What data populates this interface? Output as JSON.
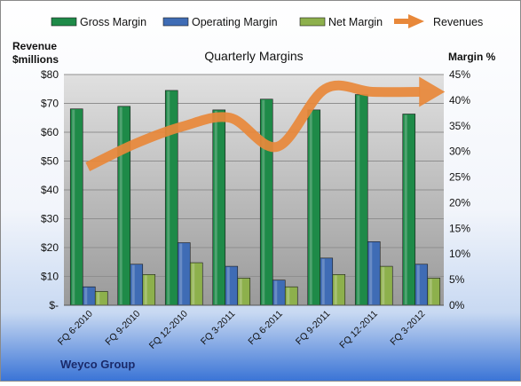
{
  "chart_data": {
    "type": "bar",
    "title": "Quarterly Margins",
    "left_axis_label": [
      "Revenue",
      "$millions"
    ],
    "right_axis_label": "Margin %",
    "footer_label": "Weyco Group",
    "categories": [
      "FQ 6-2010",
      "FQ 9-2010",
      "FQ 12-2010",
      "FQ 3-2011",
      "FQ 6-2011",
      "FQ 9-2011",
      "FQ 12-2011",
      "FQ 3-2012"
    ],
    "left_ticks": [
      "$-",
      "$10",
      "$20",
      "$30",
      "$40",
      "$50",
      "$60",
      "$70",
      "$80"
    ],
    "right_ticks": [
      "0%",
      "5%",
      "10%",
      "15%",
      "20%",
      "25%",
      "30%",
      "35%",
      "40%",
      "45%"
    ],
    "left_ylim": [
      0,
      80
    ],
    "right_ylim": [
      0,
      45
    ],
    "grid": true,
    "legend_position": "top",
    "bar_series": [
      {
        "name": "Gross Margin",
        "color": "#1e8a48",
        "values": [
          38.3,
          38.8,
          41.9,
          38.1,
          40.2,
          38.1,
          41.1,
          37.3
        ]
      },
      {
        "name": "Operating Margin",
        "color": "#3f6cb5",
        "values": [
          3.6,
          8.0,
          12.2,
          7.6,
          4.9,
          9.2,
          12.4,
          8.0
        ]
      },
      {
        "name": "Net Margin",
        "color": "#8db04c",
        "values": [
          2.7,
          6.0,
          8.3,
          5.3,
          3.6,
          6.0,
          7.6,
          5.3
        ]
      }
    ],
    "line_series": {
      "name": "Revenues",
      "color": "#e8883a",
      "axis": "left",
      "values": [
        48,
        56,
        62,
        65,
        55,
        75,
        74,
        74
      ]
    }
  }
}
